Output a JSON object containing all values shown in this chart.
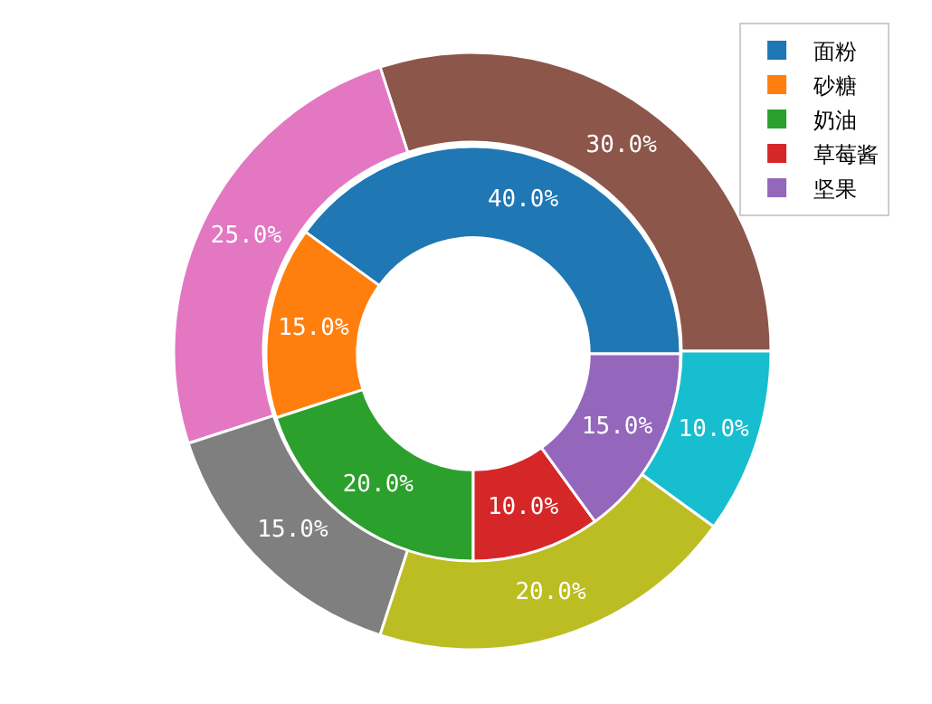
{
  "chart_data": [
    {
      "type": "donut",
      "categories": [
        null,
        null,
        null,
        null,
        null
      ],
      "values": [
        30,
        25,
        15,
        20,
        10
      ],
      "colors": [
        "#8c564b",
        "#e377c2",
        "#7f7f7f",
        "#bcbd22",
        "#17becf"
      ],
      "value_labels": [
        "30.0%",
        "25.0%",
        "15.0%",
        "20.0%",
        "10.0%"
      ]
    },
    {
      "type": "donut",
      "categories": [
        "面粉",
        "砂糖",
        "奶油",
        "草莓酱",
        "坚果"
      ],
      "values": [
        40,
        15,
        20,
        10,
        15
      ],
      "colors": [
        "#1f77b4",
        "#ff7f0e",
        "#2ca02c",
        "#d62728",
        "#9467bd"
      ],
      "value_labels": [
        "40.0%",
        "15.0%",
        "20.0%",
        "10.0%",
        "15.0%"
      ],
      "legend": "top right"
    }
  ]
}
